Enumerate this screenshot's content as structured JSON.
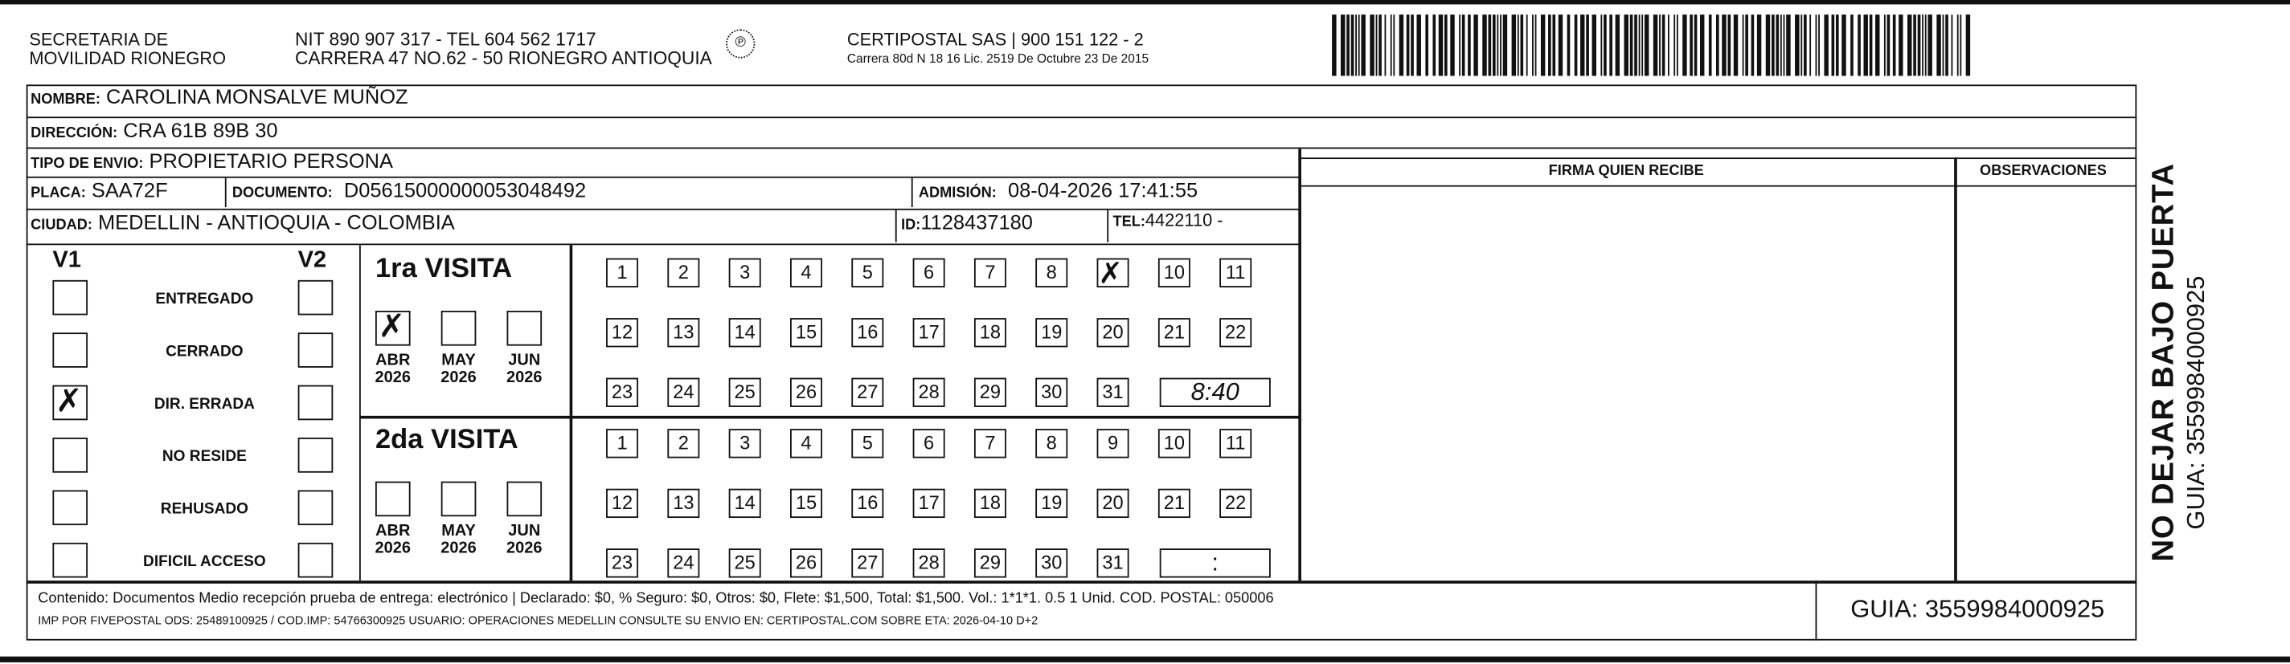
{
  "header": {
    "org_line1": "SECRETARIA  DE",
    "org_line2": "MOVILIDAD RIONEGRO",
    "nit_line": "NIT 890 907 317 - TEL 604 562 1717",
    "address_line": "CARRERA 47 NO.62 - 50 RIONEGRO ANTIOQUIA",
    "logo_text": "CERTIPOSTAL",
    "company_line": "CERTIPOSTAL SAS | 900 151 122 - 2",
    "company_address": "Carrera 80d N 18 16  Lic. 2519 De Octubre 23 De 2015"
  },
  "fields": {
    "nombre_label": "NOMBRE:",
    "nombre": "CAROLINA MONSALVE MUÑOZ",
    "direccion_label": "DIRECCIÓN:",
    "direccion": "CRA 61B 89B 30",
    "tipo_label": "TIPO DE ENVIO:",
    "tipo": "PROPIETARIO PERSONA",
    "placa_label": "PLACA:",
    "placa": "SAA72F",
    "documento_label": "DOCUMENTO:",
    "documento": "D05615000000053048492",
    "admision_label": "ADMISIÓN:",
    "admision": "08-04-2026 17:41:55",
    "ciudad_label": "CIUDAD:",
    "ciudad": "MEDELLIN - ANTIOQUIA - COLOMBIA",
    "id_label": "ID:",
    "id": "1128437180",
    "tel_label": "TEL:",
    "tel": "4422110 -"
  },
  "firma_label": "FIRMA QUIEN RECIBE",
  "observaciones_label": "OBSERVACIONES",
  "side": {
    "warning": "NO DEJAR BAJO PUERTA",
    "guia": "GUIA: 3559984000925"
  },
  "status": {
    "v1": "V1",
    "v2": "V2",
    "items": [
      {
        "label": "ENTREGADO",
        "v1": false,
        "v2": false
      },
      {
        "label": "CERRADO",
        "v1": false,
        "v2": false
      },
      {
        "label": "DIR. ERRADA",
        "v1": true,
        "v2": false
      },
      {
        "label": "NO RESIDE",
        "v1": false,
        "v2": false
      },
      {
        "label": "REHUSADO",
        "v1": false,
        "v2": false
      },
      {
        "label": "DIFICIL ACCESO",
        "v1": false,
        "v2": false
      }
    ]
  },
  "visits": [
    {
      "title": "1ra VISITA",
      "months": [
        {
          "m": "ABR",
          "y": "2026",
          "checked": true
        },
        {
          "m": "MAY",
          "y": "2026",
          "checked": false
        },
        {
          "m": "JUN",
          "y": "2026",
          "checked": false
        }
      ],
      "marked_day": 9,
      "time": "8:40"
    },
    {
      "title": "2da VISITA",
      "months": [
        {
          "m": "ABR",
          "y": "2026",
          "checked": false
        },
        {
          "m": "MAY",
          "y": "2026",
          "checked": false
        },
        {
          "m": "JUN",
          "y": "2026",
          "checked": false
        }
      ],
      "marked_day": null,
      "time": ":"
    }
  ],
  "footer": {
    "line1": "Contenido: Documentos Medio recepción prueba de entrega: electrónico | Declarado: $0, % Seguro: $0, Otros: $0, Flete: $1,500, Total: $1,500. Vol.: 1*1*1. 0.5  1 Unid. COD. POSTAL: 050006",
    "line2": "IMP POR FIVEPOSTAL ODS: 25489100925 / COD.IMP: 54766300925 USUARIO: OPERACIONES MEDELLIN CONSULTE SU ENVIO EN: CERTIPOSTAL.COM SOBRE ETA: 2026-04-10 D+2",
    "guia": "GUIA: 3559984000925"
  },
  "mark_glyph": "✗"
}
